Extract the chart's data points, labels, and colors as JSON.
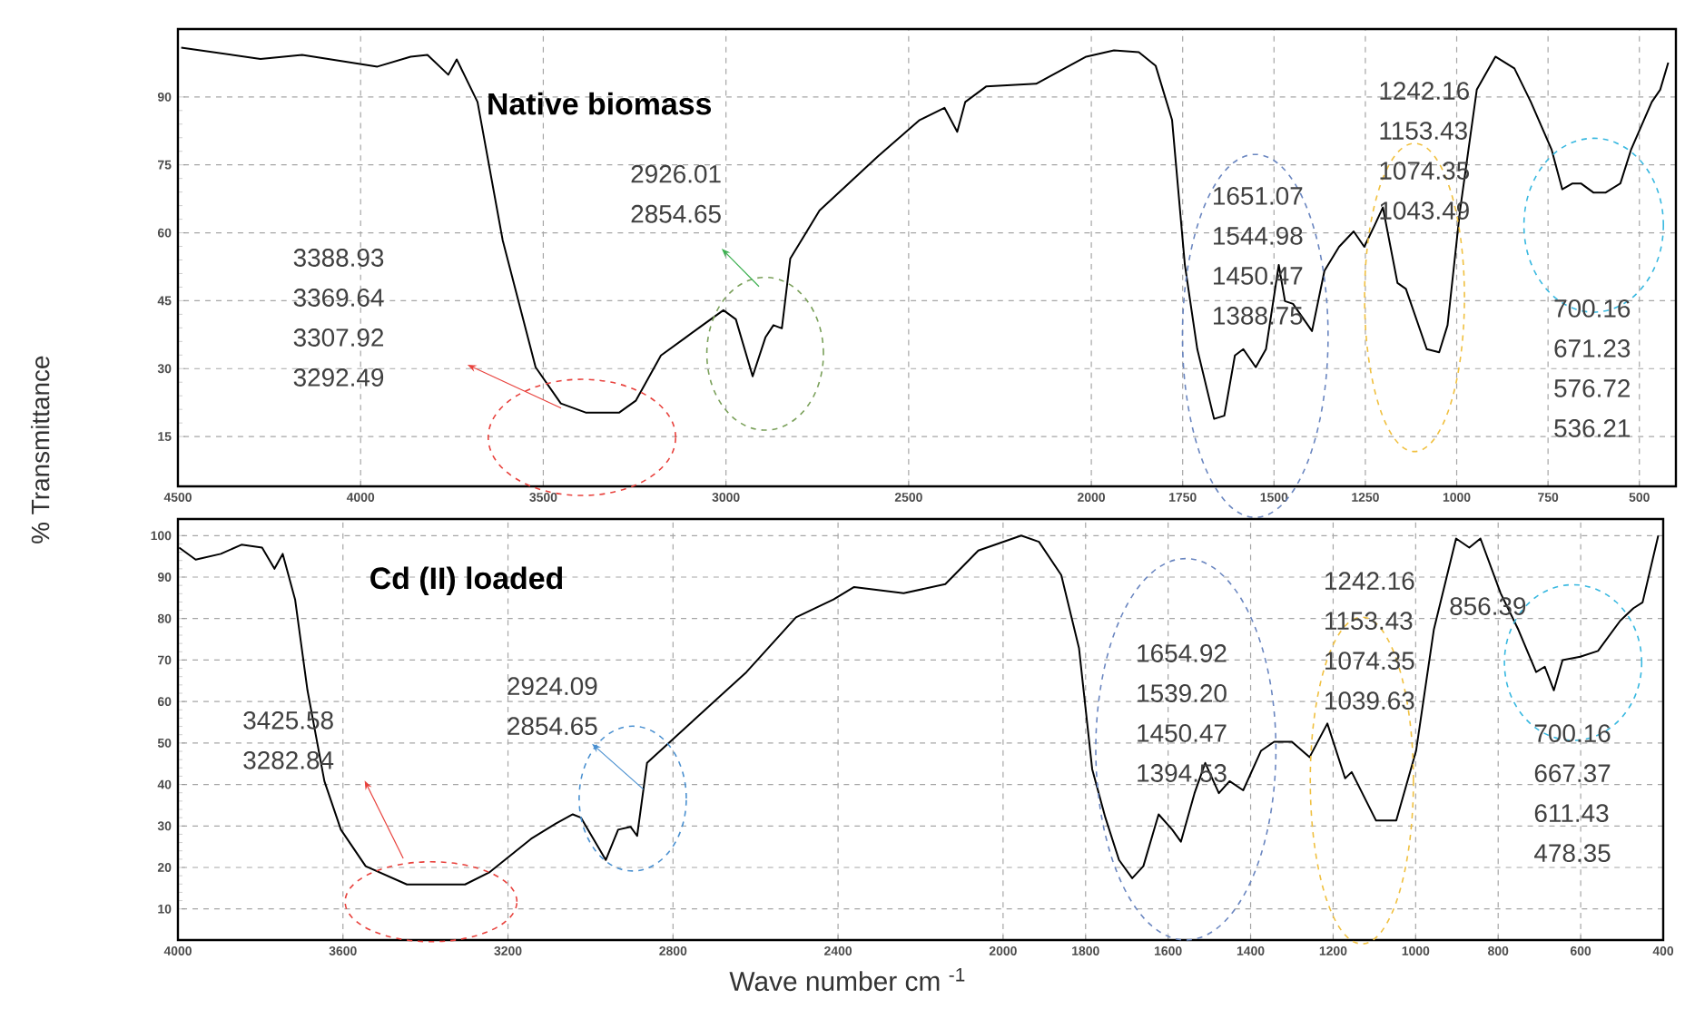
{
  "chart_data": [
    {
      "type": "line",
      "title": "Native biomass",
      "ylabel": "% Transmittance",
      "color": "#000000",
      "grid": true,
      "xlim": [
        4500,
        400
      ],
      "ylim": [
        4,
        105
      ],
      "xticks": [
        4500,
        4000,
        3500,
        3000,
        2500,
        2000,
        1750,
        1500,
        1250,
        1000,
        750,
        500
      ],
      "yticks": [
        15,
        30,
        45,
        60,
        75,
        90
      ],
      "x": [
        4491,
        4274,
        4160,
        3954,
        3863,
        3817,
        3760,
        3737,
        3680,
        3611,
        3521,
        3452,
        3384,
        3292,
        3247,
        3178,
        3110,
        3064,
        3007,
        2973,
        2927,
        2892,
        2870,
        2847,
        2824,
        2744,
        2584,
        2470,
        2402,
        2367,
        2345,
        2288,
        2151,
        2014,
        1938,
        1870,
        1824,
        1779,
        1744,
        1710,
        1664,
        1636,
        1607,
        1584,
        1550,
        1522,
        1487,
        1470,
        1448,
        1396,
        1362,
        1322,
        1282,
        1253,
        1225,
        1202,
        1162,
        1139,
        1082,
        1048,
        1025,
        991,
        945,
        894,
        842,
        797,
        740,
        711,
        683,
        660,
        626,
        592,
        552,
        523,
        466,
        443,
        421
      ],
      "values": [
        100.9,
        98.4,
        99.3,
        96.7,
        98.9,
        99.3,
        94.9,
        98.3,
        88.9,
        58.3,
        30.3,
        22.3,
        20.3,
        20.3,
        22.9,
        32.9,
        36.9,
        39.6,
        42.9,
        40.9,
        28.3,
        36.9,
        39.6,
        38.9,
        54.3,
        64.9,
        76.9,
        84.9,
        87.6,
        82.3,
        88.9,
        92.3,
        92.9,
        98.9,
        100.3,
        99.9,
        96.9,
        84.9,
        52.9,
        34.3,
        18.9,
        19.6,
        32.9,
        34.3,
        30.3,
        34.3,
        52.9,
        44.9,
        44.3,
        38.3,
        51.6,
        56.9,
        60.3,
        56.9,
        61.6,
        65.6,
        48.9,
        47.6,
        34.3,
        33.6,
        39.6,
        64.9,
        91.6,
        98.9,
        96.3,
        88.9,
        78.3,
        69.6,
        70.9,
        70.9,
        68.9,
        68.9,
        70.9,
        78.3,
        88.9,
        91.6,
        97.6
      ],
      "annotations": [
        "3388.93",
        "3369.64",
        "3307.92",
        "3292.49",
        "2926.01",
        "2854.65",
        "1651.07",
        "1544.98",
        "1450.47",
        "1388.75",
        "1242.16",
        "1153.43",
        "1074.35",
        "1043.49",
        "700.16",
        "671.23",
        "576.72",
        "536.21"
      ]
    },
    {
      "type": "line",
      "title": "Cd (II) loaded",
      "xlabel": "Wave number cm $^{-1}$",
      "color": "#000000",
      "grid": true,
      "xlim": [
        4000,
        400
      ],
      "ylim": [
        2.5,
        104
      ],
      "xticks": [
        4000,
        3600,
        3200,
        2800,
        2400,
        2000,
        1800,
        1600,
        1400,
        1200,
        1000,
        800,
        600,
        400
      ],
      "yticks": [
        10,
        20,
        30,
        40,
        50,
        60,
        70,
        80,
        90,
        100
      ],
      "x": [
        3997,
        3957,
        3896,
        3846,
        3796,
        3766,
        3746,
        3716,
        3686,
        3645,
        3605,
        3545,
        3445,
        3304,
        3244,
        3144,
        3084,
        3043,
        3023,
        2993,
        2963,
        2933,
        2903,
        2887,
        2863,
        2783,
        2622,
        2502,
        2441,
        2411,
        2361,
        2241,
        2140,
        2060,
        1956,
        1913,
        1859,
        1816,
        1784,
        1752,
        1719,
        1687,
        1660,
        1623,
        1590,
        1569,
        1536,
        1510,
        1477,
        1451,
        1418,
        1375,
        1343,
        1300,
        1257,
        1214,
        1171,
        1155,
        1096,
        1047,
        999,
        956,
        902,
        870,
        843,
        794,
        751,
        708,
        687,
        665,
        644,
        601,
        558,
        504,
        472,
        450,
        412
      ],
      "values": [
        97.1,
        94.2,
        95.6,
        97.8,
        97.1,
        92.0,
        95.6,
        84.6,
        62.7,
        40.8,
        29.1,
        20.3,
        15.9,
        15.9,
        18.9,
        26.9,
        30.6,
        32.8,
        32.0,
        26.9,
        21.8,
        29.1,
        29.8,
        27.6,
        45.2,
        52.5,
        67.1,
        80.3,
        83.2,
        84.6,
        87.6,
        86.1,
        88.3,
        96.4,
        100,
        98.5,
        90.5,
        72.9,
        43.7,
        32.0,
        21.8,
        17.4,
        20.3,
        32.8,
        29.1,
        26.2,
        37.9,
        45.2,
        37.9,
        40.8,
        38.6,
        48.1,
        50.3,
        50.3,
        46.6,
        54.7,
        41.5,
        43.0,
        31.3,
        31.3,
        48.1,
        77.3,
        99.3,
        97.1,
        99.3,
        86.1,
        77.3,
        67.1,
        68.4,
        62.7,
        70.0,
        70.8,
        72.2,
        79.5,
        82.5,
        83.9,
        100
      ],
      "annotations": [
        "3425.58",
        "3282.84",
        "2924.09",
        "2854.65",
        "1654.92",
        "1539.20",
        "1450.47",
        "1394.53",
        "1242.16",
        "1153.43",
        "1074.35",
        "1039.63",
        "856.39",
        "700.16",
        "667.37",
        "611.43",
        "478.35"
      ]
    }
  ]
}
